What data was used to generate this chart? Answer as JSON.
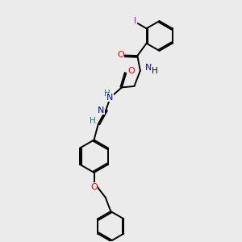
{
  "bg_color": "#ebebeb",
  "bond_color": "#000000",
  "bond_lw": 1.4,
  "dbl_lw": 1.4,
  "figsize": [
    3.0,
    3.0
  ],
  "dpi": 100,
  "atom_colors": {
    "O": "#ff0000",
    "N": "#0000cd",
    "HN": "#0000cd",
    "H": "#008080",
    "I": "#cc00cc",
    "C": "#000000"
  },
  "xlim": [
    0,
    10
  ],
  "ylim": [
    0,
    10
  ]
}
